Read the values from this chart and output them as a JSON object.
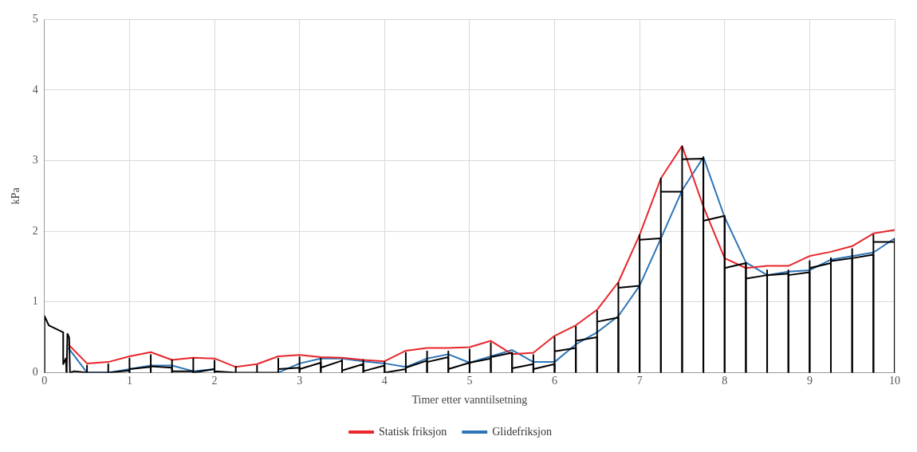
{
  "chart_data": {
    "type": "line",
    "xlabel": "Timer etter vanntilsetning",
    "ylabel": "kPa",
    "xlim": [
      0,
      10
    ],
    "xticks": [
      0,
      1,
      2,
      3,
      4,
      5,
      6,
      7,
      8,
      9,
      10
    ],
    "ylim": [
      0,
      5
    ],
    "yticks": [
      0,
      1,
      2,
      3,
      4,
      5
    ],
    "grid": true,
    "legend": "bottom",
    "marker": "none",
    "line_style": "solid",
    "series": [
      {
        "color": "#000000",
        "x": [
          0,
          0,
          0.05,
          0.22,
          0.22,
          0.25,
          0.26
        ],
        "values": [
          0,
          0.8,
          0.67,
          0.57,
          0.12,
          0.2,
          0
        ]
      },
      {
        "color": "#000000",
        "x": [
          0.26,
          0.27,
          0.29,
          0.3,
          0.35,
          0.5,
          0.5,
          0.5,
          0.75,
          0.75,
          0.75,
          1,
          1
        ],
        "values": [
          0,
          0.55,
          0.5,
          0,
          0.02,
          0,
          0.1,
          0,
          0,
          0.12,
          0,
          0.03,
          0
        ]
      },
      {
        "color": "#000000",
        "x": [
          1,
          1,
          1,
          1.25,
          1.25
        ],
        "values": [
          0,
          0.2,
          0.05,
          0.08,
          0
        ]
      },
      {
        "color": "#000000",
        "x": [
          1.25,
          1.25,
          1.25,
          1.5,
          1.5
        ],
        "values": [
          0,
          0.25,
          0.09,
          0.07,
          0
        ]
      },
      {
        "color": "#000000",
        "x": [
          1.5,
          1.5,
          1.5,
          1.75,
          1.75
        ],
        "values": [
          0,
          0.18,
          0.02,
          0.02,
          0
        ]
      },
      {
        "color": "#000000",
        "x": [
          1.75,
          1.75,
          1.75,
          2,
          2
        ],
        "values": [
          0,
          0.2,
          0,
          0.05,
          0
        ]
      },
      {
        "color": "#000000",
        "x": [
          2,
          2,
          2,
          2.25,
          2.25,
          2.25,
          2.5,
          2.5,
          2.5,
          2.75,
          2.75,
          2.75,
          3,
          3
        ],
        "values": [
          0,
          0.17,
          0.02,
          0,
          0.08,
          0,
          0,
          0.1,
          0,
          0,
          0.2,
          0.05,
          0.07,
          0
        ]
      },
      {
        "color": "#000000",
        "x": [
          3,
          3,
          3,
          3.25,
          3.25
        ],
        "values": [
          0,
          0.22,
          0.05,
          0.14,
          0
        ]
      },
      {
        "color": "#000000",
        "x": [
          3.25,
          3.25,
          3.25,
          3.5,
          3.5
        ],
        "values": [
          0,
          0.2,
          0.07,
          0.17,
          0
        ]
      },
      {
        "color": "#000000",
        "x": [
          3.5,
          3.5,
          3.5,
          3.75,
          3.75
        ],
        "values": [
          0,
          0.18,
          0.03,
          0.12,
          0
        ]
      },
      {
        "color": "#000000",
        "x": [
          3.75,
          3.75,
          3.75,
          4,
          4
        ],
        "values": [
          0,
          0.18,
          0.02,
          0.1,
          0
        ]
      },
      {
        "color": "#000000",
        "x": [
          4,
          4,
          4,
          4.25,
          4.25
        ],
        "values": [
          0,
          0.15,
          0,
          0.05,
          0
        ]
      },
      {
        "color": "#000000",
        "x": [
          4.25,
          4.25,
          4.25,
          4.5,
          4.5
        ],
        "values": [
          0,
          0.28,
          0.07,
          0.17,
          0
        ]
      },
      {
        "color": "#000000",
        "x": [
          4.5,
          4.5,
          4.5,
          4.75,
          4.75
        ],
        "values": [
          0,
          0.3,
          0.15,
          0.22,
          0
        ]
      },
      {
        "color": "#000000",
        "x": [
          4.75,
          4.75,
          4.75,
          5,
          5
        ],
        "values": [
          0,
          0.3,
          0.05,
          0.14,
          0
        ]
      },
      {
        "color": "#000000",
        "x": [
          5,
          5,
          5,
          5.25,
          5.25
        ],
        "values": [
          0,
          0.33,
          0.14,
          0.2,
          0
        ]
      },
      {
        "color": "#000000",
        "x": [
          5.25,
          5.25,
          5.25,
          5.5,
          5.5
        ],
        "values": [
          0,
          0.42,
          0.22,
          0.28,
          0
        ]
      },
      {
        "color": "#000000",
        "x": [
          5.5,
          5.5,
          5.5,
          5.75,
          5.75
        ],
        "values": [
          0,
          0.28,
          0.06,
          0.12,
          0
        ]
      },
      {
        "color": "#000000",
        "x": [
          5.75,
          5.75,
          5.75,
          6,
          6
        ],
        "values": [
          0,
          0.25,
          0.05,
          0.12,
          0
        ]
      },
      {
        "color": "#000000",
        "x": [
          6,
          6,
          6,
          6.25,
          6.25
        ],
        "values": [
          0,
          0.5,
          0.3,
          0.35,
          0
        ]
      },
      {
        "color": "#000000",
        "x": [
          6.25,
          6.25,
          6.25,
          6.5,
          6.5
        ],
        "values": [
          0,
          0.65,
          0.45,
          0.5,
          0
        ]
      },
      {
        "color": "#000000",
        "x": [
          6.5,
          6.5,
          6.5,
          6.75,
          6.75
        ],
        "values": [
          0,
          0.87,
          0.72,
          0.78,
          0
        ]
      },
      {
        "color": "#000000",
        "x": [
          6.75,
          6.75,
          6.75,
          7,
          7
        ],
        "values": [
          0,
          1.27,
          1.2,
          1.23,
          0
        ]
      },
      {
        "color": "#000000",
        "x": [
          7,
          7,
          7,
          7.25,
          7.25
        ],
        "values": [
          0,
          1.95,
          1.88,
          1.9,
          0
        ]
      },
      {
        "color": "#000000",
        "x": [
          7.25,
          7.25,
          7.25,
          7.5,
          7.5
        ],
        "values": [
          0,
          2.75,
          2.56,
          2.56,
          0
        ]
      },
      {
        "color": "#000000",
        "x": [
          7.5,
          7.5,
          7.5,
          7.75,
          7.75
        ],
        "values": [
          0,
          3.2,
          3.02,
          3.03,
          0
        ]
      },
      {
        "color": "#000000",
        "x": [
          7.75,
          7.75,
          7.75,
          8,
          8
        ],
        "values": [
          0,
          3.05,
          2.15,
          2.22,
          0
        ]
      },
      {
        "color": "#000000",
        "x": [
          8,
          8,
          8,
          8.25,
          8.25
        ],
        "values": [
          0,
          2.2,
          1.48,
          1.55,
          0
        ]
      },
      {
        "color": "#000000",
        "x": [
          8.25,
          8.25,
          8.25,
          8.5,
          8.5
        ],
        "values": [
          0,
          1.55,
          1.33,
          1.38,
          0
        ]
      },
      {
        "color": "#000000",
        "x": [
          8.5,
          8.5,
          8.5,
          8.75,
          8.75
        ],
        "values": [
          0,
          1.45,
          1.38,
          1.4,
          0
        ]
      },
      {
        "color": "#000000",
        "x": [
          8.75,
          8.75,
          8.75,
          9,
          9
        ],
        "values": [
          0,
          1.45,
          1.38,
          1.42,
          0
        ]
      },
      {
        "color": "#000000",
        "x": [
          9,
          9,
          9,
          9.25,
          9.25
        ],
        "values": [
          0,
          1.58,
          1.48,
          1.55,
          0
        ]
      },
      {
        "color": "#000000",
        "x": [
          9.25,
          9.25,
          9.25,
          9.5,
          9.5
        ],
        "values": [
          0,
          1.62,
          1.58,
          1.62,
          0
        ]
      },
      {
        "color": "#000000",
        "x": [
          9.5,
          9.5,
          9.5,
          9.75,
          9.75
        ],
        "values": [
          0,
          1.75,
          1.62,
          1.67,
          0
        ]
      },
      {
        "color": "#000000",
        "x": [
          9.75,
          9.75,
          9.75,
          10
        ],
        "values": [
          0,
          1.95,
          1.85,
          1.85
        ]
      },
      {
        "color": "#000000",
        "x": [
          10,
          10
        ],
        "values": [
          0,
          1.9
        ]
      },
      {
        "name": "Statisk friksjon",
        "color": "#e8262b",
        "x": [
          0.28,
          0.5,
          0.75,
          1,
          1.25,
          1.5,
          1.75,
          2,
          2.25,
          2.5,
          2.75,
          3,
          3.25,
          3.5,
          3.75,
          4,
          4.25,
          4.5,
          4.75,
          5,
          5.25,
          5.5,
          5.75,
          6,
          6.25,
          6.5,
          6.75,
          7,
          7.25,
          7.5,
          7.75,
          8,
          8.25,
          8.5,
          8.75,
          9,
          9.25,
          9.5,
          9.75,
          10
        ],
        "values": [
          0.4,
          0.13,
          0.15,
          0.23,
          0.29,
          0.18,
          0.21,
          0.2,
          0.08,
          0.12,
          0.23,
          0.25,
          0.22,
          0.21,
          0.18,
          0.16,
          0.31,
          0.35,
          0.35,
          0.36,
          0.45,
          0.26,
          0.28,
          0.52,
          0.67,
          0.89,
          1.28,
          1.95,
          2.75,
          3.21,
          2.35,
          1.62,
          1.48,
          1.51,
          1.51,
          1.65,
          1.71,
          1.79,
          1.97,
          2.02
        ]
      },
      {
        "name": "Glidefriksjon",
        "color": "#2e75b6",
        "x": [
          0.28,
          0.5,
          0.75,
          1,
          1.25,
          1.5,
          1.75,
          2,
          2.25,
          2.5,
          2.75,
          3,
          3.25,
          3.5,
          3.75,
          4,
          4.25,
          4.5,
          4.75,
          5,
          5.25,
          5.5,
          5.75,
          6,
          6.25,
          6.5,
          6.75,
          7,
          7.25,
          7.5,
          7.75,
          8,
          8.25,
          8.5,
          8.75,
          9,
          9.25,
          9.5,
          9.75,
          10
        ],
        "values": [
          0.35,
          0,
          0,
          0.05,
          0.1,
          0.1,
          0.02,
          0.05,
          null,
          null,
          0,
          0.13,
          0.2,
          0.2,
          0.16,
          0.13,
          0.08,
          0.2,
          0.26,
          0.14,
          0.23,
          0.32,
          0.15,
          0.15,
          0.4,
          0.57,
          0.8,
          1.23,
          1.9,
          2.58,
          3.05,
          2.2,
          1.56,
          1.38,
          1.43,
          1.45,
          1.6,
          1.65,
          1.7,
          1.9
        ]
      }
    ]
  }
}
